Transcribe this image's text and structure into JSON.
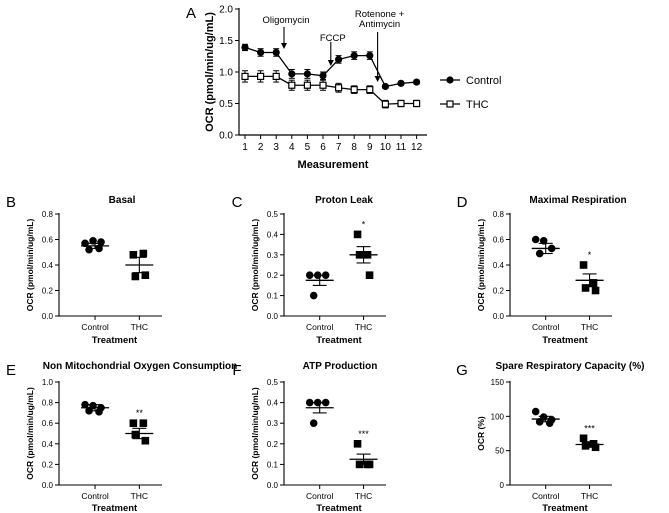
{
  "panel_a": {
    "letter": "A",
    "xlabel": "Measurement",
    "ylabel": "OCR (pmol/min/ug/mL)",
    "annotations": [
      {
        "lines": [
          "Oligomycin"
        ],
        "after": 3
      },
      {
        "lines": [
          "FCCP"
        ],
        "after": 6
      },
      {
        "lines": [
          "Rotenone +",
          "Antimycin"
        ],
        "after": 9
      }
    ],
    "legend": [
      "Control",
      "THC"
    ]
  },
  "chart_data": [
    {
      "type": "line",
      "panel": "A",
      "x": [
        1,
        2,
        3,
        4,
        5,
        6,
        7,
        8,
        9,
        10,
        11,
        12
      ],
      "xticks": [
        "1",
        "2",
        "3",
        "4",
        "5",
        "6",
        "7",
        "8",
        "9",
        "10",
        "11",
        "12"
      ],
      "ylim": [
        0,
        2
      ],
      "yticks": [
        "0.0",
        "0.5",
        "1.0",
        "1.5",
        "2.0"
      ],
      "ytick_values": [
        0,
        0.5,
        1,
        1.5,
        2
      ],
      "xlabel": "Measurement",
      "ylabel": "OCR (pmol/min/ug/mL)",
      "series": [
        {
          "name": "Control",
          "marker": "filled-circle",
          "values": [
            1.39,
            1.31,
            1.31,
            0.97,
            0.97,
            0.94,
            1.2,
            1.26,
            1.26,
            0.77,
            0.82,
            0.84
          ],
          "errors": [
            0.05,
            0.06,
            0.06,
            0.07,
            0.07,
            0.06,
            0.06,
            0.06,
            0.06,
            0.03,
            0.03,
            0.03
          ]
        },
        {
          "name": "THC",
          "marker": "open-square",
          "values": [
            0.93,
            0.93,
            0.93,
            0.79,
            0.79,
            0.79,
            0.75,
            0.72,
            0.72,
            0.49,
            0.5,
            0.5
          ],
          "errors": [
            0.09,
            0.09,
            0.09,
            0.08,
            0.08,
            0.08,
            0.07,
            0.06,
            0.06,
            0.06,
            0.05,
            0.05
          ]
        }
      ]
    },
    {
      "type": "scatter",
      "panel": "B",
      "letter": "B",
      "title": "Basal",
      "xlabel": "Treatment",
      "ylabel": "OCR (pmol/min/ug/mL)",
      "ylim": [
        0,
        0.8
      ],
      "yticks": [
        "0.0",
        "0.2",
        "0.4",
        "0.6",
        "0.8"
      ],
      "ytick_values": [
        0,
        0.2,
        0.4,
        0.6,
        0.8
      ],
      "categories": [
        "Control",
        "THC"
      ],
      "groups": [
        {
          "name": "Control",
          "marker": "circle",
          "points": [
            0.57,
            0.59,
            0.58,
            0.52,
            0.53
          ],
          "mean": 0.55,
          "sem": 0.02,
          "sig": ""
        },
        {
          "name": "THC",
          "marker": "square",
          "points": [
            0.48,
            0.49,
            0.31,
            0.32
          ],
          "mean": 0.4,
          "sem": 0.06,
          "sig": ""
        }
      ]
    },
    {
      "type": "scatter",
      "panel": "C",
      "letter": "C",
      "title": "Proton Leak",
      "xlabel": "Treatment",
      "ylabel": "OCR (pmol/min/ug/mL)",
      "ylim": [
        0,
        0.5
      ],
      "yticks": [
        "0.0",
        "0.1",
        "0.2",
        "0.3",
        "0.4",
        "0.5"
      ],
      "ytick_values": [
        0,
        0.1,
        0.2,
        0.3,
        0.4,
        0.5
      ],
      "categories": [
        "Control",
        "THC"
      ],
      "groups": [
        {
          "name": "Control",
          "marker": "circle",
          "points": [
            0.2,
            0.2,
            0.2,
            0.1
          ],
          "mean": 0.175,
          "sem": 0.025,
          "sig": ""
        },
        {
          "name": "THC",
          "marker": "square",
          "points": [
            0.4,
            0.3,
            0.3,
            0.2
          ],
          "mean": 0.3,
          "sem": 0.04,
          "sig": "*"
        }
      ]
    },
    {
      "type": "scatter",
      "panel": "D",
      "letter": "D",
      "title": "Maximal Respiration",
      "xlabel": "Treatment",
      "ylabel": "OCR (pmol/min/ug/mL)",
      "ylim": [
        0,
        0.8
      ],
      "yticks": [
        "0.0",
        "0.2",
        "0.4",
        "0.6",
        "0.8"
      ],
      "ytick_values": [
        0,
        0.2,
        0.4,
        0.6,
        0.8
      ],
      "categories": [
        "Control",
        "THC"
      ],
      "groups": [
        {
          "name": "Control",
          "marker": "circle",
          "points": [
            0.6,
            0.59,
            0.53,
            0.49
          ],
          "mean": 0.53,
          "sem": 0.04,
          "sig": ""
        },
        {
          "name": "THC",
          "marker": "square",
          "points": [
            0.4,
            0.26,
            0.22,
            0.2
          ],
          "mean": 0.28,
          "sem": 0.05,
          "sig": "*"
        }
      ]
    },
    {
      "type": "scatter",
      "panel": "E",
      "letter": "E",
      "title": "Non Mitochondrial Oxygen Consumption",
      "xlabel": "Treatment",
      "ylabel": "OCR (pmol/min/ug/mL)",
      "ylim": [
        0,
        1.0
      ],
      "yticks": [
        "0.0",
        "0.2",
        "0.4",
        "0.6",
        "0.8",
        "1.0"
      ],
      "ytick_values": [
        0,
        0.2,
        0.4,
        0.6,
        0.8,
        1.0
      ],
      "categories": [
        "Control",
        "THC"
      ],
      "groups": [
        {
          "name": "Control",
          "marker": "circle",
          "points": [
            0.78,
            0.77,
            0.75,
            0.72,
            0.71
          ],
          "mean": 0.75,
          "sem": 0.03,
          "sig": ""
        },
        {
          "name": "THC",
          "marker": "square",
          "points": [
            0.6,
            0.6,
            0.49,
            0.43
          ],
          "mean": 0.5,
          "sem": 0.05,
          "sig": "**"
        }
      ]
    },
    {
      "type": "scatter",
      "panel": "F",
      "letter": "F",
      "title": "ATP Production",
      "xlabel": "Treatment",
      "ylabel": "OCR (pmol/min/ug/mL)",
      "ylim": [
        0,
        0.5
      ],
      "yticks": [
        "0.0",
        "0.1",
        "0.2",
        "0.3",
        "0.4",
        "0.5"
      ],
      "ytick_values": [
        0,
        0.1,
        0.2,
        0.3,
        0.4,
        0.5
      ],
      "categories": [
        "Control",
        "THC"
      ],
      "groups": [
        {
          "name": "Control",
          "marker": "circle",
          "points": [
            0.4,
            0.4,
            0.4,
            0.3
          ],
          "mean": 0.375,
          "sem": 0.025,
          "sig": ""
        },
        {
          "name": "THC",
          "marker": "square",
          "points": [
            0.2,
            0.1,
            0.1,
            0.1
          ],
          "mean": 0.125,
          "sem": 0.025,
          "sig": "***"
        }
      ]
    },
    {
      "type": "scatter",
      "panel": "G",
      "letter": "G",
      "title": "Spare Respiratory Capacity (%)",
      "xlabel": "Treatment",
      "ylabel": "OCR (%)",
      "ylim": [
        0,
        150
      ],
      "yticks": [
        "0",
        "50",
        "100",
        "150"
      ],
      "ytick_values": [
        0,
        50,
        100,
        150
      ],
      "categories": [
        "Control",
        "THC"
      ],
      "groups": [
        {
          "name": "Control",
          "marker": "circle",
          "points": [
            107,
            99,
            95,
            92,
            90
          ],
          "mean": 96,
          "sem": 4,
          "sig": ""
        },
        {
          "name": "THC",
          "marker": "square",
          "points": [
            68,
            60,
            57,
            55
          ],
          "mean": 59,
          "sem": 4,
          "sig": "***"
        }
      ]
    }
  ]
}
